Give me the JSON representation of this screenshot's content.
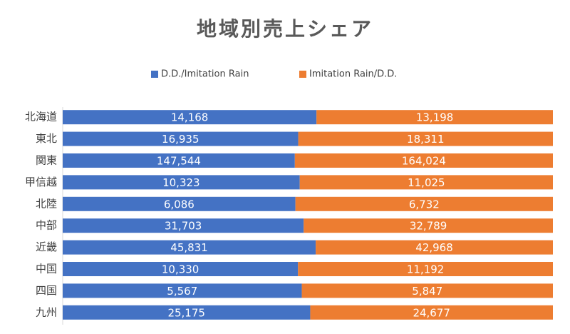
{
  "chart_data": {
    "type": "bar",
    "orientation": "horizontal",
    "stacked": "percent",
    "title": "地域別売上シェア",
    "categories": [
      "北海道",
      "東北",
      "関東",
      "甲信越",
      "北陸",
      "中部",
      "近畿",
      "中国",
      "四国",
      "九州"
    ],
    "series": [
      {
        "name": "D.D./Imitation Rain",
        "color": "#4472c4",
        "values": [
          14168,
          16935,
          147544,
          10323,
          6086,
          31703,
          45831,
          10330,
          5567,
          25175
        ],
        "value_labels": [
          "14,168",
          "16,935",
          "147,544",
          "10,323",
          "6,086",
          "31,703",
          "45,831",
          "10,330",
          "5,567",
          "25,175"
        ]
      },
      {
        "name": "Imitation Rain/D.D.",
        "color": "#ed7d31",
        "values": [
          13198,
          18311,
          164024,
          11025,
          6732,
          32789,
          42968,
          11192,
          5847,
          24677
        ],
        "value_labels": [
          "13,198",
          "18,311",
          "164,024",
          "11,025",
          "6,732",
          "32,789",
          "42,968",
          "11,192",
          "5,847",
          "24,677"
        ]
      }
    ]
  }
}
